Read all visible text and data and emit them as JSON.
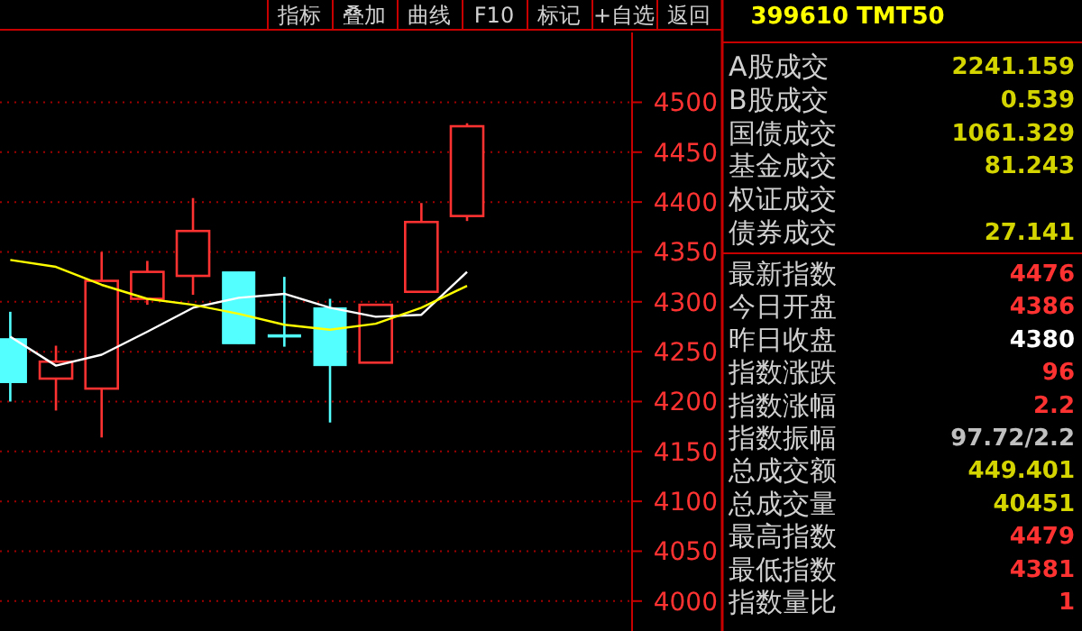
{
  "chart_data": [
    {
      "type": "candlestick",
      "categories": [
        null,
        null,
        null,
        null,
        null,
        null,
        null,
        null,
        null,
        null,
        null
      ],
      "ohlc": [
        [
          4263,
          4290,
          4200,
          4219
        ],
        [
          4223,
          4256,
          4191,
          4240
        ],
        [
          4213,
          4350,
          4164,
          4321
        ],
        [
          4303,
          4341,
          4297,
          4330
        ],
        [
          4326,
          4404,
          4307,
          4371
        ],
        [
          4330,
          4330,
          4258,
          4258
        ],
        [
          4267,
          4325,
          4255,
          4266
        ],
        [
          4294,
          4303,
          4179,
          4236
        ],
        [
          4239,
          4297,
          4239,
          4297
        ],
        [
          4310,
          4399,
          4310,
          4380
        ],
        [
          4386,
          4479,
          4381,
          4476
        ]
      ],
      "colors": [
        "#54ffff",
        "#ff3232",
        "#ff3232",
        "#ff3232",
        "#ff3232",
        "#54ffff",
        "#54ffff",
        "#54ffff",
        "#ff3232",
        "#ff3232",
        "#ff3232"
      ],
      "series": [
        {
          "type": "line",
          "color": "#ffffff",
          "values": [
            4265,
            4236,
            4247,
            4270,
            4294,
            4304,
            4308,
            4294,
            4285,
            4287,
            4330
          ]
        },
        {
          "type": "line",
          "color": "#ffff00",
          "values": [
            4342,
            4335,
            4317,
            4303,
            4297,
            4288,
            4277,
            4272,
            4278,
            4294,
            4316
          ]
        }
      ],
      "ylim": [
        3970,
        4570
      ],
      "yticks": [
        4000,
        4050,
        4100,
        4150,
        4200,
        4250,
        4300,
        4350,
        4400,
        4450,
        4500
      ],
      "grid": "y",
      "annotations": [
        "指标",
        "叠加",
        "曲线",
        "F10",
        "标记",
        "+自选",
        "返回"
      ]
    },
    {
      "type": "other",
      "title": "399610 TMT50",
      "categories": [
        "A股成交",
        "B股成交",
        "国债成交",
        "基金成交",
        "权证成交",
        "债券成交",
        "最新指数",
        "今日开盘",
        "昨日收盘",
        "指数涨跌",
        "指数涨幅",
        "指数振幅",
        "总成交额",
        "总成交量",
        "最高指数",
        "最低指数",
        "指数量比"
      ],
      "value_labels": [
        "2241.159",
        "0.539",
        "1061.329",
        "81.243",
        null,
        "27.141",
        "4476",
        "4386",
        "4380",
        "96",
        "2.2",
        "97.72/2.2",
        "449.401",
        "40451",
        "4479",
        "4381",
        "1"
      ],
      "colors": [
        "#d4d400",
        "#d4d400",
        "#d4d400",
        "#d4d400",
        null,
        "#d4d400",
        "#ff3232",
        "#ff3232",
        "#ffffff",
        "#ff3232",
        "#ff3232",
        "#c0c0c0",
        "#d4d400",
        "#d4d400",
        "#ff3232",
        "#ff3232",
        "#ff3232"
      ]
    }
  ]
}
